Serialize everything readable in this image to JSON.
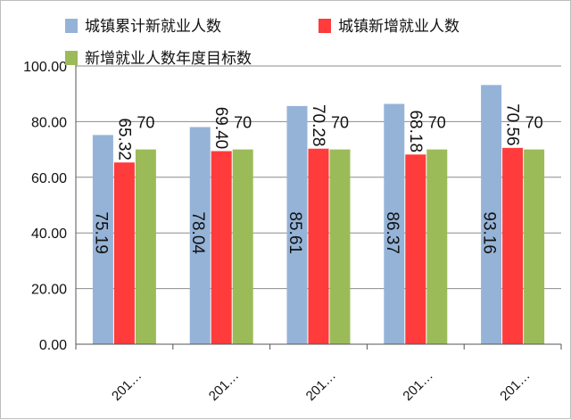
{
  "chart_data": {
    "type": "bar",
    "categories": [
      "201…",
      "201…",
      "201…",
      "201…",
      "201…"
    ],
    "series": [
      {
        "name": "城镇累计新就业人数",
        "values": [
          75.19,
          78.04,
          85.61,
          86.37,
          93.16
        ],
        "color": "#95b3d7",
        "labels": [
          "75.19",
          "78.04",
          "85.61",
          "86.37",
          "93.16"
        ]
      },
      {
        "name": "城镇新增就业人数",
        "values": [
          65.32,
          69.4,
          70.28,
          68.18,
          70.56
        ],
        "color": "#ff3b3b",
        "labels": [
          "65.32",
          "69.40",
          "70.28",
          "68.18",
          "70.56"
        ]
      },
      {
        "name": "新增就业人数年度目标数",
        "values": [
          70,
          70,
          70,
          70,
          70
        ],
        "color": "#9bbb59",
        "labels": [
          "70",
          "70",
          "70",
          "70",
          "70"
        ]
      }
    ],
    "ylim": [
      0,
      100
    ],
    "yticks": [
      "0.00",
      "20.00",
      "40.00",
      "60.00",
      "80.00",
      "100.00"
    ],
    "grid": true,
    "legend_position": "top"
  }
}
